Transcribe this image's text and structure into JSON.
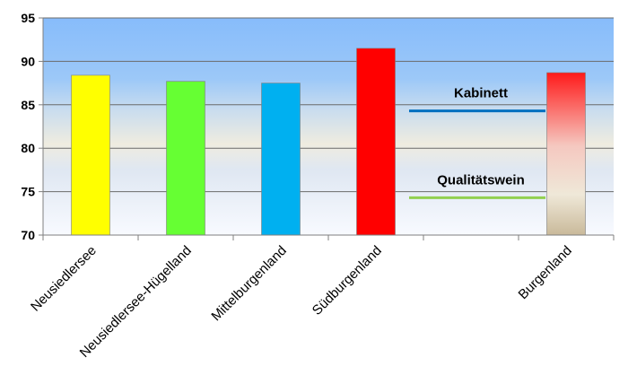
{
  "chart_data": {
    "type": "bar",
    "categories": [
      "Neusiedlersee",
      "Neusiedlersee-Hügelland",
      "Mittelburgenland",
      "Südburgenland",
      "",
      "Burgenland"
    ],
    "values": [
      88.4,
      87.7,
      87.5,
      91.5,
      null,
      88.7
    ],
    "colors": [
      "#ffff00",
      "#66ff33",
      "#00b0f0",
      "#ff0000",
      null,
      "gradient-red-cream-tan"
    ],
    "ylim": [
      70,
      95
    ],
    "yticks": [
      70,
      75,
      80,
      85,
      90,
      95
    ],
    "grid": "horizontal",
    "xlabel": "",
    "ylabel": "",
    "title": "",
    "reference_lines": [
      {
        "label": "Kabinett",
        "value": 84.3,
        "color": "#0070c0"
      },
      {
        "label": "Qualitätswein",
        "value": 74.3,
        "color": "#92d050"
      }
    ]
  }
}
